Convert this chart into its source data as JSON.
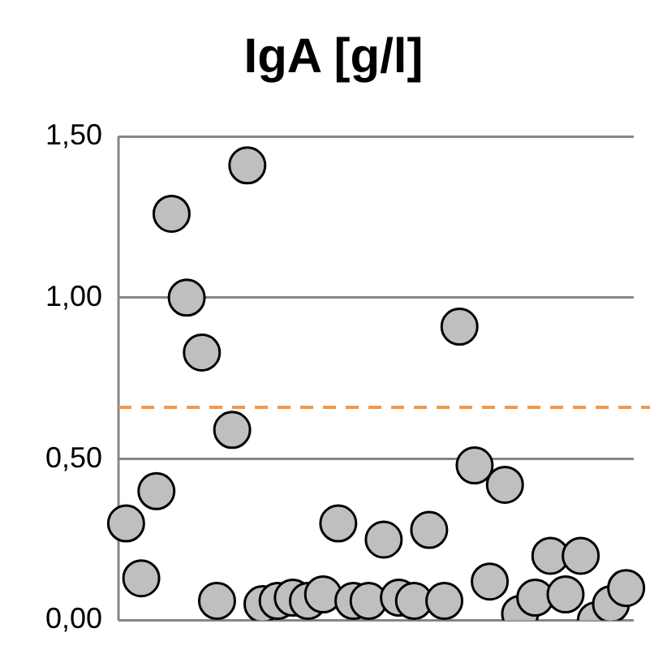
{
  "chart_data": {
    "type": "scatter",
    "title": "IgA [g/l]",
    "categories": [
      null,
      null,
      null,
      null,
      null,
      null,
      null,
      null,
      null,
      null,
      null,
      null,
      null,
      null,
      null,
      null,
      null,
      null,
      null,
      null,
      null,
      null,
      null,
      null,
      null,
      null,
      null,
      null,
      null,
      null,
      null,
      null,
      null,
      null
    ],
    "series": [
      {
        "color": "#bfbfbf",
        "values": [
          0.3,
          0.13,
          0.4,
          1.26,
          1.0,
          0.83,
          0.06,
          0.59,
          1.41,
          0.05,
          0.06,
          0.07,
          0.06,
          0.08,
          0.3,
          0.06,
          0.06,
          0.25,
          0.07,
          0.06,
          0.28,
          0.06,
          0.91,
          0.48,
          0.12,
          0.42,
          0.02,
          0.07,
          0.2,
          0.08,
          0.2,
          0.0,
          0.05,
          0.1
        ]
      }
    ],
    "ylim": [
      0,
      1.5
    ],
    "yticks": [
      {
        "value": 0,
        "label": "0,00"
      },
      {
        "value": 0.5,
        "label": "0,50"
      },
      {
        "value": 1,
        "label": "1,00"
      },
      {
        "value": 1.5,
        "label": "1,50"
      }
    ],
    "grid": "y",
    "marker": "circle",
    "ref_lines": [
      {
        "axis": "y",
        "value": 0.66,
        "color": "#f4984a",
        "line_style": "dashed"
      }
    ]
  }
}
